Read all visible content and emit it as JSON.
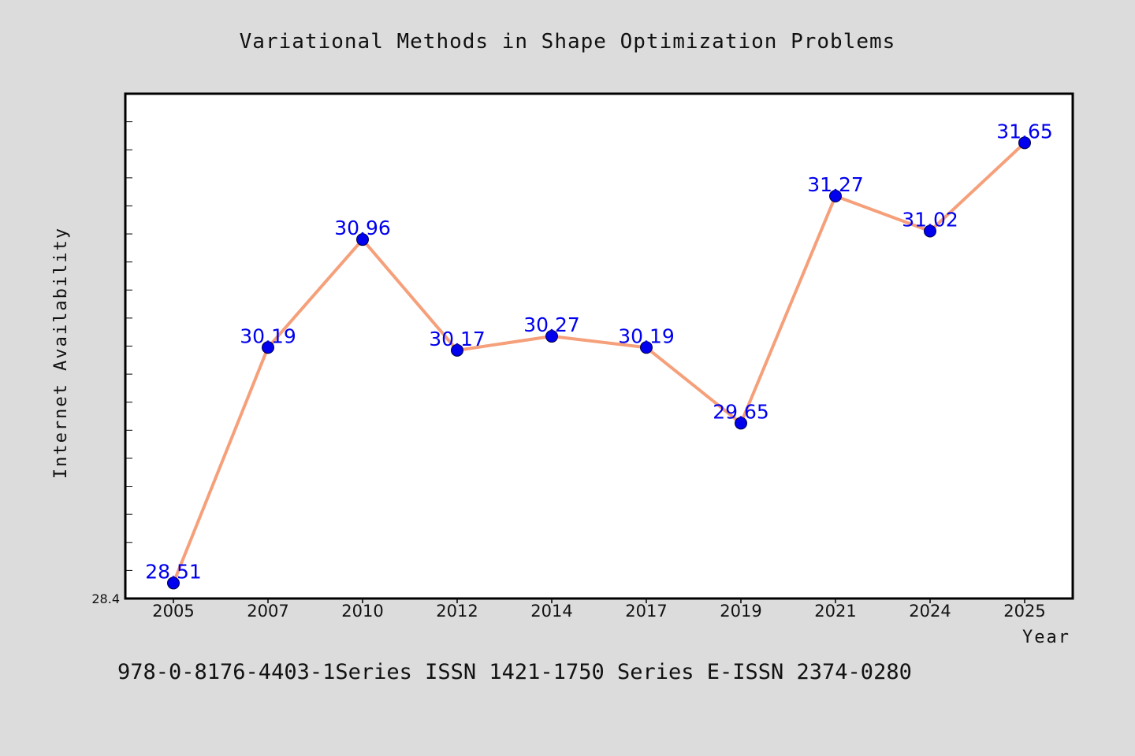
{
  "chart_data": {
    "type": "line",
    "title": "Variational Methods in Shape Optimization Problems",
    "xlabel": "Year",
    "ylabel": "Internet Availability",
    "categories": [
      "2005",
      "2007",
      "2010",
      "2012",
      "2014",
      "2017",
      "2019",
      "2021",
      "2024",
      "2025"
    ],
    "values": [
      28.51,
      30.19,
      30.96,
      30.17,
      30.27,
      30.19,
      29.65,
      31.27,
      31.02,
      31.65
    ],
    "value_labels": [
      "28.51",
      "30.19",
      "30.96",
      "30.17",
      "30.27",
      "30.19",
      "29.65",
      "31.27",
      "31.02",
      "31.65"
    ],
    "ylim": [
      28.4,
      32.0
    ],
    "y_min_label": "28.4",
    "grid": false,
    "legend": "none",
    "line_color": "#f5a07a",
    "marker_color": "#0000ee",
    "label_color": "#0000ee"
  },
  "footer": {
    "text": "978-0-8176-4403-1Series ISSN 1421-1750 Series E-ISSN 2374-0280"
  },
  "colors": {
    "background": "#dcdcdc",
    "plot_background": "#ffffff",
    "axis": "#000000"
  }
}
